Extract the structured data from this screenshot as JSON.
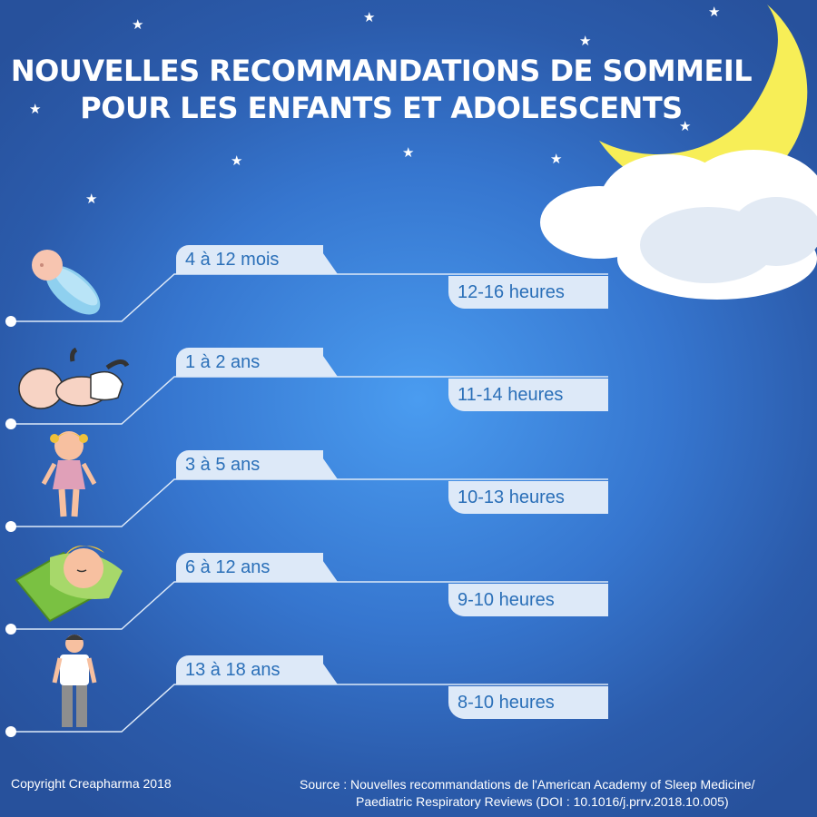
{
  "title": {
    "line1": "NOUVELLES RECOMMANDATIONS DE SOMMEIL",
    "line2": "POUR LES ENFANTS ET ADOLESCENTS"
  },
  "groups": [
    {
      "age": "4 à 12 mois",
      "hours": "12-16 heures",
      "figure": "swaddled-newborn-icon"
    },
    {
      "age": "1 à 2 ans",
      "hours": "11-14 heures",
      "figure": "baby-on-back-icon"
    },
    {
      "age": "3 à 5 ans",
      "hours": "10-13 heures",
      "figure": "toddler-girl-icon"
    },
    {
      "age": "6 à 12 ans",
      "hours": "9-10 heures",
      "figure": "sleeping-child-icon"
    },
    {
      "age": "13 à 18 ans",
      "hours": "8-10 heures",
      "figure": "teenager-boy-icon"
    }
  ],
  "footer": {
    "copyright": "Copyright Creapharma 2018",
    "source_line1": "Source : Nouvelles recommandations de l'American Academy of Sleep Medicine/",
    "source_line2": "Paediatric Respiratory Reviews (DOI : 10.1016/j.prrv.2018.10.005)"
  },
  "colors": {
    "background": "#3676cf",
    "label_fill": "#dde9f8",
    "label_text": "#2a6fb8",
    "moon": "#f7ee57"
  }
}
